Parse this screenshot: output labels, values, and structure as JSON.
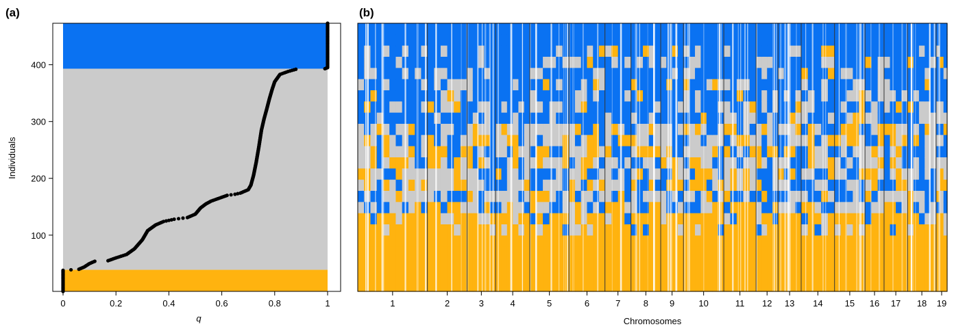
{
  "chart_data": [
    {
      "panel_label": "(a)",
      "type": "scatter",
      "xlabel": "q",
      "ylabel": "Individuals",
      "xlim": [
        0,
        1
      ],
      "ylim": [
        1,
        473
      ],
      "x_ticks": [
        "0",
        "0.2",
        "0.4",
        "0.6",
        "0.8",
        "1"
      ],
      "y_ticks": [
        "100",
        "200",
        "300",
        "400"
      ],
      "bands": [
        {
          "class": "orange",
          "color": "#FFB30F",
          "y_from": 1,
          "y_to": 39
        },
        {
          "class": "grey",
          "color": "#CBCBCB",
          "y_from": 39,
          "y_to": 393
        },
        {
          "class": "blue",
          "color": "#0A72F2",
          "y_from": 393,
          "y_to": 473
        }
      ],
      "point_color": "#000000",
      "points_curve": [
        [
          0.0,
          1
        ],
        [
          0.0,
          38
        ],
        [
          0.06,
          40
        ],
        [
          0.08,
          44
        ],
        [
          0.1,
          50
        ],
        [
          0.12,
          54
        ],
        [
          0.17,
          55
        ],
        [
          0.2,
          60
        ],
        [
          0.24,
          66
        ],
        [
          0.27,
          76
        ],
        [
          0.3,
          92
        ],
        [
          0.32,
          108
        ],
        [
          0.35,
          118
        ],
        [
          0.38,
          124
        ],
        [
          0.42,
          128
        ],
        [
          0.47,
          131
        ],
        [
          0.5,
          137
        ],
        [
          0.52,
          148
        ],
        [
          0.54,
          155
        ],
        [
          0.56,
          160
        ],
        [
          0.59,
          165
        ],
        [
          0.62,
          170
        ],
        [
          0.65,
          172
        ],
        [
          0.67,
          174
        ],
        [
          0.7,
          180
        ],
        [
          0.71,
          188
        ],
        [
          0.72,
          205
        ],
        [
          0.73,
          228
        ],
        [
          0.74,
          255
        ],
        [
          0.75,
          285
        ],
        [
          0.76,
          305
        ],
        [
          0.77,
          322
        ],
        [
          0.78,
          340
        ],
        [
          0.79,
          356
        ],
        [
          0.8,
          370
        ],
        [
          0.82,
          383
        ],
        [
          0.85,
          388
        ],
        [
          0.88,
          392
        ],
        [
          0.99,
          393
        ],
        [
          1.0,
          395
        ],
        [
          1.0,
          473
        ]
      ]
    },
    {
      "panel_label": "(b)",
      "type": "heatmap",
      "xlabel": "Chromosomes",
      "chromosomes": [
        "1",
        "2",
        "3",
        "4",
        "5",
        "6",
        "7",
        "8",
        "9",
        "10",
        "11",
        "12",
        "13",
        "14",
        "15",
        "16",
        "17",
        "18",
        "19"
      ],
      "chromosome_widths": [
        1.9,
        1.08,
        0.78,
        0.93,
        1.07,
        0.98,
        0.71,
        0.81,
        0.62,
        1.1,
        0.88,
        0.6,
        0.63,
        0.91,
        0.83,
        0.52,
        0.64,
        0.78,
        0.3
      ],
      "class_colors": {
        "blue": "#0A72F2",
        "grey": "#CBCBCB",
        "orange": "#FFB30F"
      },
      "row_thresholds": {
        "blue_above": 300,
        "orange_below": 130
      },
      "row_count": 24
    }
  ]
}
